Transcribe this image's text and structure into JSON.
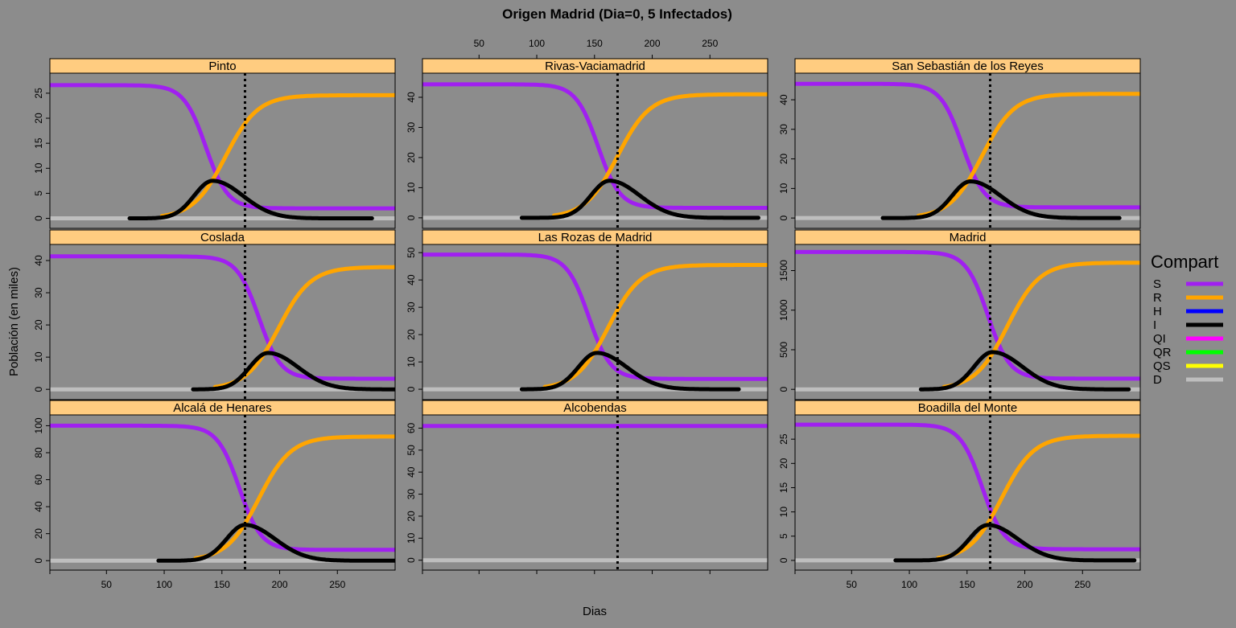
{
  "chart_data": {
    "type": "line",
    "title": "Origen Madrid (Dia=0, 5 Infectados)",
    "xlabel": "Dias",
    "ylabel": "Población (en miles)",
    "xlim": [
      1,
      300
    ],
    "xticks": [
      50,
      100,
      150,
      200,
      250
    ],
    "vline_x": 170,
    "grid": false,
    "legend": {
      "title": "Compart",
      "placement": "right",
      "entries": [
        {
          "name": "S",
          "color": "#a020f0"
        },
        {
          "name": "R",
          "color": "#ffa500"
        },
        {
          "name": "H",
          "color": "#0000ff"
        },
        {
          "name": "I",
          "color": "#000000"
        },
        {
          "name": "QI",
          "color": "#ff00ff"
        },
        {
          "name": "QR",
          "color": "#00ff00"
        },
        {
          "name": "QS",
          "color": "#ffff00"
        },
        {
          "name": "D",
          "color": "#bebebe"
        }
      ]
    },
    "panels": [
      {
        "name": "Pinto",
        "ylim": [
          -2,
          29
        ],
        "yticks": [
          0,
          5,
          10,
          15,
          20,
          25
        ],
        "S": {
          "start": 26.6,
          "end": 2.0,
          "mid": 136,
          "scale": 9.5
        },
        "R": {
          "end": 24.6,
          "mid": 153,
          "scale": 14
        },
        "I": {
          "peak": 7.5,
          "at": 142,
          "width_left": 16,
          "width_right": 26,
          "start": 70,
          "end": 280
        }
      },
      {
        "name": "Rivas-Vaciamadrid",
        "ylim": [
          -3.5,
          48
        ],
        "yticks": [
          0,
          10,
          20,
          30,
          40
        ],
        "S": {
          "start": 44.3,
          "end": 3.3,
          "mid": 153,
          "scale": 9.5
        },
        "R": {
          "end": 41.0,
          "mid": 170,
          "scale": 14
        },
        "I": {
          "peak": 12.3,
          "at": 163,
          "width_left": 16,
          "width_right": 26,
          "start": 87,
          "end": 292
        }
      },
      {
        "name": "San Sebastián de los Reyes",
        "ylim": [
          -3.5,
          49
        ],
        "yticks": [
          0,
          10,
          20,
          30,
          40
        ],
        "S": {
          "start": 45.4,
          "end": 3.6,
          "mid": 146,
          "scale": 9.5
        },
        "R": {
          "end": 42.0,
          "mid": 163,
          "scale": 14
        },
        "I": {
          "peak": 12.4,
          "at": 153,
          "width_left": 16,
          "width_right": 26,
          "start": 77,
          "end": 282
        }
      },
      {
        "name": "Coslada",
        "ylim": [
          -3.2,
          45
        ],
        "yticks": [
          0,
          10,
          20,
          30,
          40
        ],
        "S": {
          "start": 41.3,
          "end": 3.3,
          "mid": 182,
          "scale": 9.5
        },
        "R": {
          "end": 38.0,
          "mid": 199,
          "scale": 14
        },
        "I": {
          "peak": 11.3,
          "at": 190,
          "width_left": 16,
          "width_right": 26,
          "start": 125,
          "end": 300
        }
      },
      {
        "name": "Las Rozas de Madrid",
        "ylim": [
          -3.8,
          53
        ],
        "yticks": [
          0,
          10,
          20,
          30,
          40,
          50
        ],
        "S": {
          "start": 49.3,
          "end": 3.8,
          "mid": 145,
          "scale": 9.5
        },
        "R": {
          "end": 45.5,
          "mid": 162,
          "scale": 14
        },
        "I": {
          "peak": 13.3,
          "at": 152,
          "width_left": 16,
          "width_right": 26,
          "start": 87,
          "end": 275
        }
      },
      {
        "name": "Madrid",
        "ylim": [
          -130,
          1830
        ],
        "yticks": [
          0,
          500,
          1000,
          1500
        ],
        "S": {
          "start": 1735,
          "end": 135,
          "mid": 168,
          "scale": 9.5
        },
        "R": {
          "end": 1600,
          "mid": 185,
          "scale": 14
        },
        "I": {
          "peak": 470,
          "at": 172,
          "width_left": 16,
          "width_right": 26,
          "start": 110,
          "end": 290
        }
      },
      {
        "name": "Alcalá de Henares",
        "ylim": [
          -7,
          108
        ],
        "yticks": [
          0,
          20,
          40,
          60,
          80,
          100
        ],
        "S": {
          "start": 100,
          "end": 8,
          "mid": 165,
          "scale": 9.5
        },
        "R": {
          "end": 92,
          "mid": 182,
          "scale": 14
        },
        "I": {
          "peak": 26.5,
          "at": 170,
          "width_left": 16,
          "width_right": 26,
          "start": 95,
          "end": 300
        }
      },
      {
        "name": "Alcobendas",
        "ylim": [
          -4.5,
          66
        ],
        "yticks": [
          0,
          10,
          20,
          30,
          40,
          50,
          60
        ],
        "S": {
          "start": 61,
          "end": 61,
          "mid": 1000,
          "scale": 10
        },
        "R": null,
        "I": null
      },
      {
        "name": "Boadilla del Monte",
        "ylim": [
          -2,
          30
        ],
        "yticks": [
          0,
          5,
          10,
          15,
          20,
          25
        ],
        "S": {
          "start": 28,
          "end": 2.3,
          "mid": 163,
          "scale": 9.5
        },
        "R": {
          "end": 25.7,
          "mid": 180,
          "scale": 14
        },
        "I": {
          "peak": 7.3,
          "at": 168,
          "width_left": 16,
          "width_right": 26,
          "start": 88,
          "end": 295
        }
      }
    ]
  }
}
